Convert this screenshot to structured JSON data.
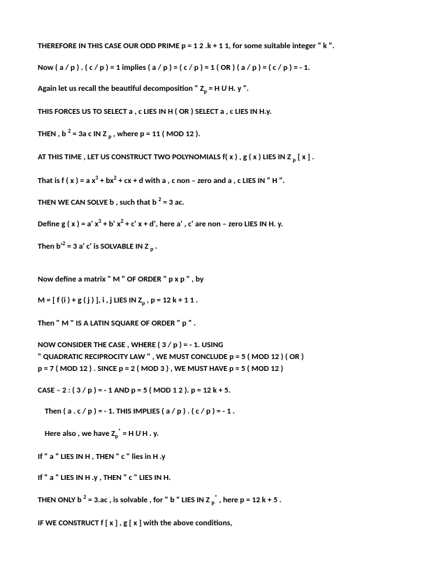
{
  "document": {
    "font_family": "Calibri",
    "font_size_pt": 11.5,
    "font_weight": "bold",
    "text_color": "#000000",
    "background_color": "#ffffff",
    "lines": [
      {
        "text": "THEREFORE IN THIS CASE  OUR ODD PRIME  p  =  1 2 .k  +  1 1, for some suitable   integer  \" k \"."
      },
      {
        "text": "Now   ( a / p ) . ( c / p ) = 1 implies  ( a / p ) =  ( c / p ) = 1  ( OR )   ( a / p  ) =  ( c / p )  =  - 1."
      },
      {
        "html": "Again let us recall the beautiful decomposition \"  Z<sub>p</sub>  =  H  <i>U</i>  H. y  \"."
      },
      {
        "text": "THIS FORCES US TO SELECT  a , c  LIES IN   H  ( OR )   SELECT   a , c  LIES IN   H.y."
      },
      {
        "html": "THEN , b <sup>2</sup>  =  3a c IN  Z <sub>p</sub> ,  where  p  =  11  ( MOD 12 )."
      },
      {
        "html": "AT THIS TIME , LET US CONSTRUCT TWO POLYNOMIALS  f( x ) , g ( x  )  LIES IN  Z <sub>p</sub> [ x ] ."
      },
      {
        "html": "That is  f ( x )  =  a x<sup>3</sup>  + bx<sup>2</sup>  + cx + d with a , c non – zero  and  a , c LIES IN  \" H \"."
      },
      {
        "html": "THEN WE CAN SOLVE  b , such that  b <sup>2</sup> = 3 ac."
      },
      {
        "html": "Define  g ( x )  = a' x<sup>3</sup>  + b'  x<sup>2</sup>  + c' x + d', here  a' , c' are non – zero LIES IN  H. y."
      },
      {
        "html": "Then  b'<sup>2</sup> = 3 a' c' is SOLVABLE  IN Z <sub>p</sub> ."
      },
      {
        "gap": true
      },
      {
        "text": "Now  define a matrix   \" M \" OF ORDER  \" p  x  p \" , by"
      },
      {
        "html": "M  =  [ f (i )  + g ( j ) ],   i , j LIES IN  Z<sub>p</sub>  ,  p = 12 k  + 1 1 ."
      },
      {
        "text": "Then  \"  M \"  IS A LATIN SQUARE OF ORDER  \" p \"  ."
      },
      {
        "text": "NOW CONSIDER THE CASE , WHERE  ( 3 / p  )  =  - 1.     USING",
        "tight": true
      },
      {
        "text": "\" QUADRATIC RECIPROCITY LAW \" , WE MUST CONCLUDE  p  =  5  ( MOD 12 )   ( OR )",
        "tight": true
      },
      {
        "text": "p = 7 ( MOD 12 ) . SINCE  p = 2 (  MOD 3 ) , WE MUST HAVE  p = 5  ( MOD 12 )"
      },
      {
        "text": "CASE – 2 :   (  3 / p  )  =   -  1   AND   p  =  5   ( MOD  1 2 ).      p = 12 k  + 5."
      },
      {
        "text": "Then   ( a . c / p )  =  - 1. THIS IMPLIES   ( a / p )  . ( c / p )  =  - 1 .",
        "indent": true
      },
      {
        "html": "Here also , we have   Z<sub>p</sub><sup>*</sup> =  H  <i>U</i>   H . y.",
        "indent": true
      },
      {
        "text": "If    \" a \" LIES IN  H ,  THEN   \" c  \" lies in  H .y"
      },
      {
        "text": "If  \" a \"  LIES IN  H .y , THEN  \" c \"   LIES IN   H."
      },
      {
        "html": "THEN ONLY   b <sup>2</sup>  =  3.ac , is solvable , for \" b \"  LIES IN  Z <sub>p</sub><sup>*</sup> ,   here  p = 12 k  + 5 ."
      },
      {
        "text": "IF WE CONSTRUCT  f [ x ] , g [ x ] with the above conditions,"
      }
    ]
  }
}
